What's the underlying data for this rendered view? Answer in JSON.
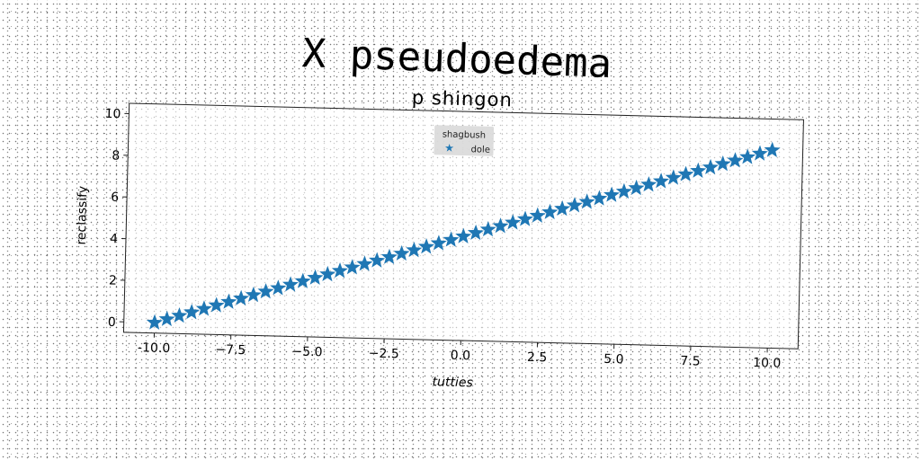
{
  "figure": {
    "title": "X pseudoedema"
  },
  "chart_data": {
    "type": "scatter",
    "title": "p shingon",
    "xlabel": "tutties",
    "ylabel": "reclassify",
    "xlim": [
      -11,
      11
    ],
    "ylim": [
      -0.5,
      10.5
    ],
    "x_ticks": [
      -10.0,
      -7.5,
      -5.0,
      -2.5,
      0.0,
      2.5,
      5.0,
      7.5,
      10.0
    ],
    "x_tick_labels": [
      "-10.0",
      "−7.5",
      "−5.0",
      "−2.5",
      "0.0",
      "2.5",
      "5.0",
      "7.5",
      "10.0"
    ],
    "y_ticks": [
      0,
      2,
      4,
      6,
      8,
      10
    ],
    "y_tick_labels": [
      "0",
      "2",
      "4",
      "6",
      "8",
      "10"
    ],
    "grid": false,
    "legend": {
      "title": "shagbush",
      "placement": "top-center",
      "entries": [
        "dole"
      ]
    },
    "series": [
      {
        "name": "dole",
        "marker": "star",
        "color": "#1f77b4",
        "x": [
          -10.0,
          -9.6,
          -9.2,
          -8.8,
          -8.4,
          -8.0,
          -7.6,
          -7.2,
          -6.8,
          -6.4,
          -6.0,
          -5.6,
          -5.2,
          -4.8,
          -4.4,
          -4.0,
          -3.6,
          -3.2,
          -2.8,
          -2.4,
          -2.0,
          -1.6,
          -1.2,
          -0.8,
          -0.4,
          0.0,
          0.4,
          0.8,
          1.2,
          1.6,
          2.0,
          2.4,
          2.8,
          3.2,
          3.6,
          4.0,
          4.4,
          4.8,
          5.2,
          5.6,
          6.0,
          6.4,
          6.8,
          7.2,
          7.6,
          8.0,
          8.4,
          8.8,
          9.2,
          9.6,
          10.0
        ],
        "y": [
          0.0,
          0.18,
          0.36,
          0.54,
          0.72,
          0.9,
          1.08,
          1.26,
          1.44,
          1.62,
          1.8,
          1.98,
          2.16,
          2.34,
          2.52,
          2.7,
          2.88,
          3.06,
          3.24,
          3.42,
          3.6,
          3.78,
          3.96,
          4.14,
          4.32,
          4.5,
          4.68,
          4.86,
          5.04,
          5.22,
          5.4,
          5.58,
          5.76,
          5.94,
          6.12,
          6.3,
          6.48,
          6.66,
          6.84,
          7.02,
          7.2,
          7.38,
          7.56,
          7.74,
          7.92,
          8.1,
          8.28,
          8.46,
          8.64,
          8.82,
          9.0
        ]
      }
    ]
  }
}
